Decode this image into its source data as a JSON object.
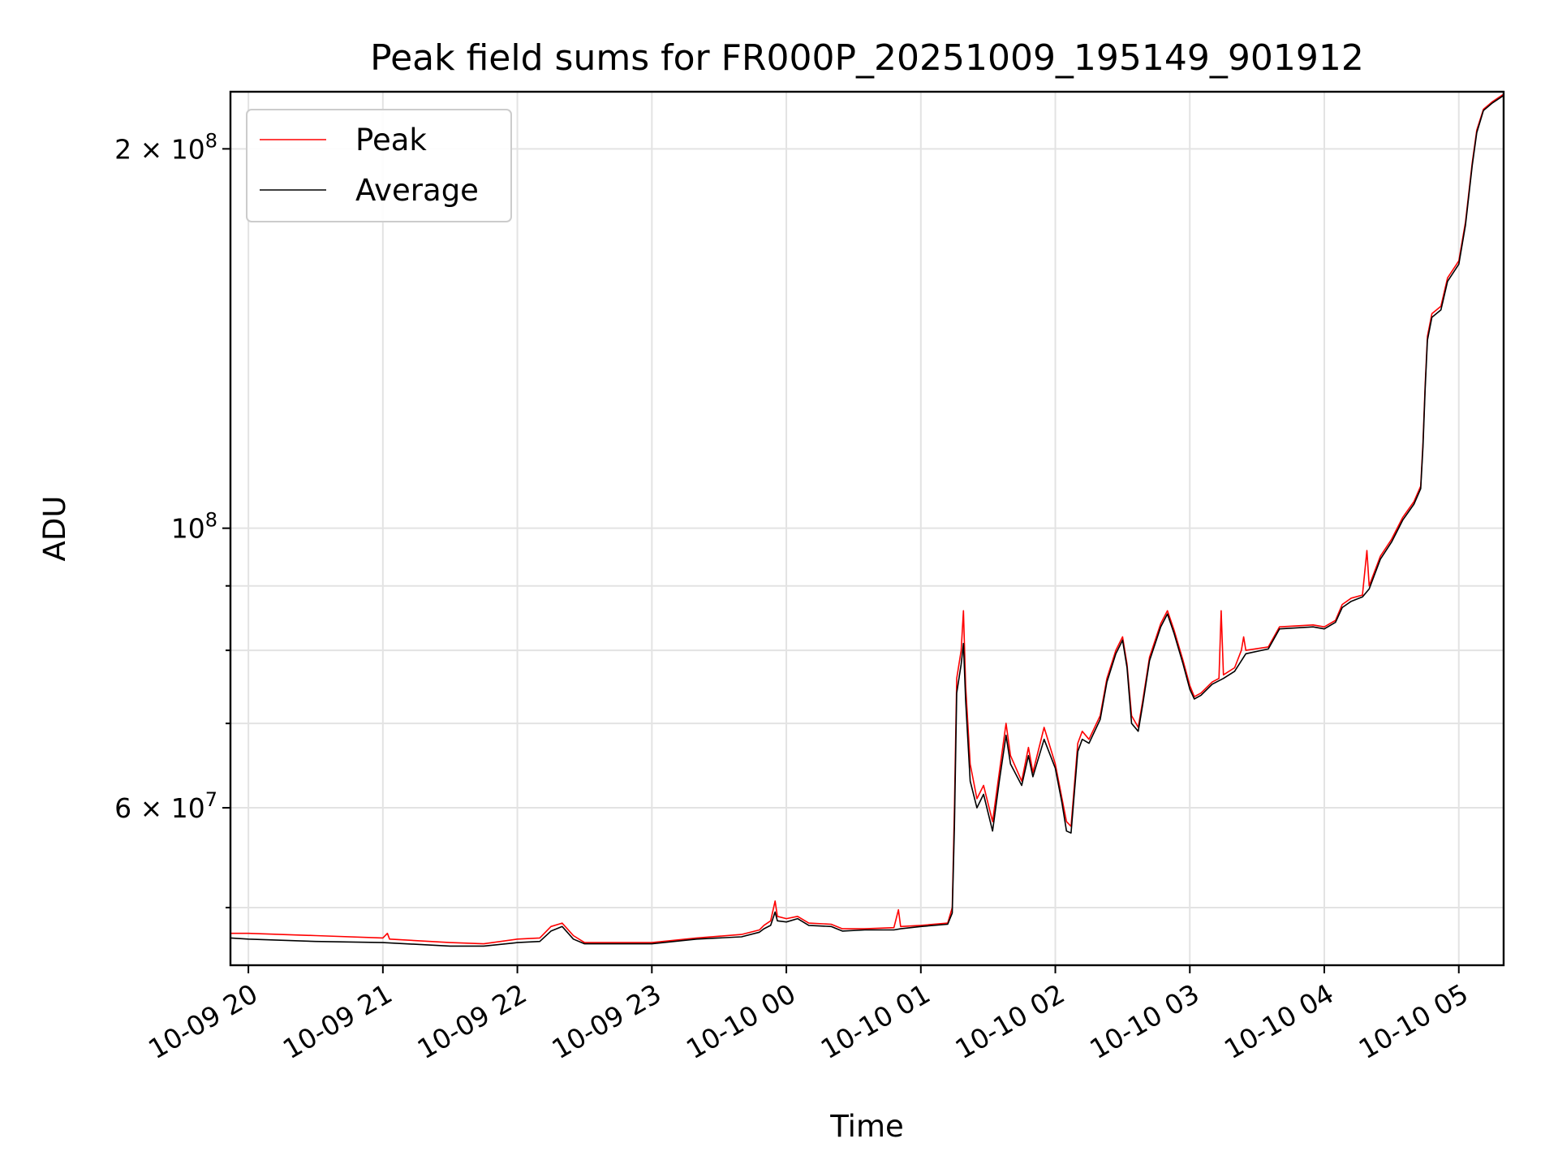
{
  "chart_data": {
    "type": "line",
    "title": "Peak field sums for FR000P_20251009_195149_901912",
    "xlabel": "Time",
    "ylabel": "ADU",
    "y_scale": "log",
    "grid": true,
    "legend_placement": "top-left",
    "x_tick_labels": [
      "10-09 20",
      "10-09 21",
      "10-09 22",
      "10-09 23",
      "10-10 00",
      "10-10 01",
      "10-10 02",
      "10-10 03",
      "10-10 04",
      "10-10 05"
    ],
    "y_tick_labels": [
      {
        "value": 200000000,
        "label_base": "2 × 10",
        "label_exp": "8"
      },
      {
        "value": 100000000,
        "label_base": "10",
        "label_exp": "8"
      },
      {
        "value": 60000000,
        "label_base": "6 × 10",
        "label_exp": "7"
      }
    ],
    "y_minor_ticks": [
      50000000,
      70000000,
      80000000,
      90000000
    ],
    "x_range": [
      "2025-10-09 19:52",
      "2025-10-10 05:20"
    ],
    "y_range": [
      45000000,
      222000000
    ],
    "series": [
      {
        "name": "Peak",
        "color": "#ff0000",
        "points": [
          [
            "2025-10-09 19:52",
            47.7
          ],
          [
            "2025-10-09 20:00",
            47.7
          ],
          [
            "2025-10-09 20:30",
            47.5
          ],
          [
            "2025-10-09 21:00",
            47.3
          ],
          [
            "2025-10-09 21:02",
            47.7
          ],
          [
            "2025-10-09 21:03",
            47.2
          ],
          [
            "2025-10-09 21:30",
            46.9
          ],
          [
            "2025-10-09 21:45",
            46.8
          ],
          [
            "2025-10-09 22:00",
            47.2
          ],
          [
            "2025-10-09 22:10",
            47.3
          ],
          [
            "2025-10-09 22:15",
            48.3
          ],
          [
            "2025-10-09 22:20",
            48.6
          ],
          [
            "2025-10-09 22:25",
            47.5
          ],
          [
            "2025-10-09 22:30",
            46.9
          ],
          [
            "2025-10-09 23:00",
            46.9
          ],
          [
            "2025-10-09 23:20",
            47.3
          ],
          [
            "2025-10-09 23:40",
            47.6
          ],
          [
            "2025-10-09 23:48",
            48.0
          ],
          [
            "2025-10-09 23:50",
            48.4
          ],
          [
            "2025-10-09 23:53",
            48.8
          ],
          [
            "2025-10-09 23:55",
            50.6
          ],
          [
            "2025-10-09 23:56",
            49.2
          ],
          [
            "2025-10-10 00:00",
            49.0
          ],
          [
            "2025-10-10 00:05",
            49.2
          ],
          [
            "2025-10-10 00:10",
            48.6
          ],
          [
            "2025-10-10 00:20",
            48.5
          ],
          [
            "2025-10-10 00:25",
            48.1
          ],
          [
            "2025-10-10 00:35",
            48.1
          ],
          [
            "2025-10-10 00:48",
            48.2
          ],
          [
            "2025-10-10 00:50",
            49.8
          ],
          [
            "2025-10-10 00:51",
            48.3
          ],
          [
            "2025-10-10 01:00",
            48.4
          ],
          [
            "2025-10-10 01:12",
            48.6
          ],
          [
            "2025-10-10 01:14",
            50.0
          ],
          [
            "2025-10-10 01:15",
            60.0
          ],
          [
            "2025-10-10 01:16",
            76.0
          ],
          [
            "2025-10-10 01:18",
            80.0
          ],
          [
            "2025-10-10 01:19",
            86.0
          ],
          [
            "2025-10-10 01:20",
            75.0
          ],
          [
            "2025-10-10 01:22",
            65.0
          ],
          [
            "2025-10-10 01:25",
            61.0
          ],
          [
            "2025-10-10 01:28",
            62.5
          ],
          [
            "2025-10-10 01:32",
            58.5
          ],
          [
            "2025-10-10 01:35",
            64.0
          ],
          [
            "2025-10-10 01:38",
            70.0
          ],
          [
            "2025-10-10 01:40",
            66.0
          ],
          [
            "2025-10-10 01:45",
            63.0
          ],
          [
            "2025-10-10 01:48",
            67.0
          ],
          [
            "2025-10-10 01:50",
            64.0
          ],
          [
            "2025-10-10 01:55",
            69.5
          ],
          [
            "2025-10-10 02:00",
            65.0
          ],
          [
            "2025-10-10 02:03",
            61.0
          ],
          [
            "2025-10-10 02:05",
            58.5
          ],
          [
            "2025-10-10 02:07",
            58.0
          ],
          [
            "2025-10-10 02:10",
            67.5
          ],
          [
            "2025-10-10 02:12",
            69.0
          ],
          [
            "2025-10-10 02:15",
            68.0
          ],
          [
            "2025-10-10 02:20",
            71.0
          ],
          [
            "2025-10-10 02:23",
            76.0
          ],
          [
            "2025-10-10 02:27",
            80.0
          ],
          [
            "2025-10-10 02:30",
            82.0
          ],
          [
            "2025-10-10 02:32",
            78.0
          ],
          [
            "2025-10-10 02:34",
            71.0
          ],
          [
            "2025-10-10 02:37",
            69.5
          ],
          [
            "2025-10-10 02:39",
            73.0
          ],
          [
            "2025-10-10 02:42",
            79.0
          ],
          [
            "2025-10-10 02:47",
            84.0
          ],
          [
            "2025-10-10 02:50",
            86.0
          ],
          [
            "2025-10-10 02:53",
            83.0
          ],
          [
            "2025-10-10 02:57",
            78.5
          ],
          [
            "2025-10-10 03:00",
            75.0
          ],
          [
            "2025-10-10 03:02",
            73.5
          ],
          [
            "2025-10-10 03:05",
            74.0
          ],
          [
            "2025-10-10 03:10",
            75.5
          ],
          [
            "2025-10-10 03:13",
            76.0
          ],
          [
            "2025-10-10 03:14",
            86.0
          ],
          [
            "2025-10-10 03:15",
            76.5
          ],
          [
            "2025-10-10 03:20",
            77.5
          ],
          [
            "2025-10-10 03:23",
            80.0
          ],
          [
            "2025-10-10 03:24",
            82.0
          ],
          [
            "2025-10-10 03:25",
            80.0
          ],
          [
            "2025-10-10 03:35",
            80.5
          ],
          [
            "2025-10-10 03:40",
            83.5
          ],
          [
            "2025-10-10 03:55",
            83.8
          ],
          [
            "2025-10-10 04:00",
            83.5
          ],
          [
            "2025-10-10 04:05",
            84.5
          ],
          [
            "2025-10-10 04:08",
            87.0
          ],
          [
            "2025-10-10 04:12",
            88.0
          ],
          [
            "2025-10-10 04:17",
            88.5
          ],
          [
            "2025-10-10 04:19",
            96.0
          ],
          [
            "2025-10-10 04:20",
            90.0
          ],
          [
            "2025-10-10 04:25",
            95.0
          ],
          [
            "2025-10-10 04:30",
            98.0
          ],
          [
            "2025-10-10 04:35",
            102.0
          ],
          [
            "2025-10-10 04:40",
            105.0
          ],
          [
            "2025-10-10 04:43",
            108.0
          ],
          [
            "2025-10-10 04:44",
            117.0
          ],
          [
            "2025-10-10 04:45",
            130.0
          ],
          [
            "2025-10-10 04:46",
            142.0
          ],
          [
            "2025-10-10 04:48",
            148.0
          ],
          [
            "2025-10-10 04:52",
            150.0
          ],
          [
            "2025-10-10 04:55",
            158.0
          ],
          [
            "2025-10-10 05:00",
            163.0
          ],
          [
            "2025-10-10 05:03",
            175.0
          ],
          [
            "2025-10-10 05:06",
            195.0
          ],
          [
            "2025-10-10 05:08",
            207.0
          ],
          [
            "2025-10-10 05:11",
            215.0
          ],
          [
            "2025-10-10 05:15",
            218.0
          ],
          [
            "2025-10-10 05:20",
            221.0
          ]
        ]
      },
      {
        "name": "Average",
        "color": "#000000",
        "points": [
          [
            "2025-10-09 19:52",
            47.3
          ],
          [
            "2025-10-09 20:00",
            47.2
          ],
          [
            "2025-10-09 20:30",
            47.0
          ],
          [
            "2025-10-09 21:00",
            46.9
          ],
          [
            "2025-10-09 21:30",
            46.6
          ],
          [
            "2025-10-09 21:45",
            46.6
          ],
          [
            "2025-10-09 22:00",
            46.9
          ],
          [
            "2025-10-09 22:10",
            47.0
          ],
          [
            "2025-10-09 22:15",
            47.9
          ],
          [
            "2025-10-09 22:20",
            48.3
          ],
          [
            "2025-10-09 22:25",
            47.2
          ],
          [
            "2025-10-09 22:30",
            46.8
          ],
          [
            "2025-10-09 23:00",
            46.8
          ],
          [
            "2025-10-09 23:20",
            47.2
          ],
          [
            "2025-10-09 23:40",
            47.4
          ],
          [
            "2025-10-09 23:48",
            47.8
          ],
          [
            "2025-10-09 23:50",
            48.1
          ],
          [
            "2025-10-09 23:53",
            48.4
          ],
          [
            "2025-10-09 23:55",
            49.6
          ],
          [
            "2025-10-09 23:56",
            48.8
          ],
          [
            "2025-10-10 00:00",
            48.7
          ],
          [
            "2025-10-10 00:05",
            49.0
          ],
          [
            "2025-10-10 00:10",
            48.4
          ],
          [
            "2025-10-10 00:20",
            48.3
          ],
          [
            "2025-10-10 00:25",
            47.9
          ],
          [
            "2025-10-10 00:35",
            48.0
          ],
          [
            "2025-10-10 00:48",
            48.0
          ],
          [
            "2025-10-10 00:51",
            48.1
          ],
          [
            "2025-10-10 01:00",
            48.3
          ],
          [
            "2025-10-10 01:12",
            48.5
          ],
          [
            "2025-10-10 01:14",
            49.5
          ],
          [
            "2025-10-10 01:15",
            58.0
          ],
          [
            "2025-10-10 01:16",
            74.0
          ],
          [
            "2025-10-10 01:18",
            78.0
          ],
          [
            "2025-10-10 01:19",
            81.0
          ],
          [
            "2025-10-10 01:20",
            73.0
          ],
          [
            "2025-10-10 01:22",
            63.0
          ],
          [
            "2025-10-10 01:25",
            60.0
          ],
          [
            "2025-10-10 01:28",
            61.5
          ],
          [
            "2025-10-10 01:32",
            57.5
          ],
          [
            "2025-10-10 01:35",
            63.0
          ],
          [
            "2025-10-10 01:38",
            68.5
          ],
          [
            "2025-10-10 01:40",
            65.0
          ],
          [
            "2025-10-10 01:45",
            62.5
          ],
          [
            "2025-10-10 01:48",
            66.0
          ],
          [
            "2025-10-10 01:50",
            63.5
          ],
          [
            "2025-10-10 01:55",
            68.0
          ],
          [
            "2025-10-10 02:00",
            64.5
          ],
          [
            "2025-10-10 02:03",
            60.5
          ],
          [
            "2025-10-10 02:05",
            57.5
          ],
          [
            "2025-10-10 02:07",
            57.3
          ],
          [
            "2025-10-10 02:10",
            66.5
          ],
          [
            "2025-10-10 02:12",
            68.0
          ],
          [
            "2025-10-10 02:15",
            67.5
          ],
          [
            "2025-10-10 02:20",
            70.5
          ],
          [
            "2025-10-10 02:23",
            75.5
          ],
          [
            "2025-10-10 02:27",
            79.5
          ],
          [
            "2025-10-10 02:30",
            81.5
          ],
          [
            "2025-10-10 02:32",
            77.5
          ],
          [
            "2025-10-10 02:34",
            70.0
          ],
          [
            "2025-10-10 02:37",
            69.0
          ],
          [
            "2025-10-10 02:39",
            72.5
          ],
          [
            "2025-10-10 02:42",
            78.5
          ],
          [
            "2025-10-10 02:47",
            83.5
          ],
          [
            "2025-10-10 02:50",
            85.5
          ],
          [
            "2025-10-10 02:53",
            82.5
          ],
          [
            "2025-10-10 02:57",
            78.0
          ],
          [
            "2025-10-10 03:00",
            74.5
          ],
          [
            "2025-10-10 03:02",
            73.2
          ],
          [
            "2025-10-10 03:05",
            73.7
          ],
          [
            "2025-10-10 03:10",
            75.2
          ],
          [
            "2025-10-10 03:15",
            76.0
          ],
          [
            "2025-10-10 03:20",
            77.0
          ],
          [
            "2025-10-10 03:25",
            79.5
          ],
          [
            "2025-10-10 03:35",
            80.2
          ],
          [
            "2025-10-10 03:40",
            83.2
          ],
          [
            "2025-10-10 03:55",
            83.5
          ],
          [
            "2025-10-10 04:00",
            83.2
          ],
          [
            "2025-10-10 04:05",
            84.2
          ],
          [
            "2025-10-10 04:08",
            86.5
          ],
          [
            "2025-10-10 04:12",
            87.5
          ],
          [
            "2025-10-10 04:17",
            88.2
          ],
          [
            "2025-10-10 04:20",
            89.5
          ],
          [
            "2025-10-10 04:25",
            94.5
          ],
          [
            "2025-10-10 04:30",
            97.5
          ],
          [
            "2025-10-10 04:35",
            101.5
          ],
          [
            "2025-10-10 04:40",
            104.5
          ],
          [
            "2025-10-10 04:43",
            107.5
          ],
          [
            "2025-10-10 04:44",
            116.0
          ],
          [
            "2025-10-10 04:45",
            129.0
          ],
          [
            "2025-10-10 04:46",
            141.0
          ],
          [
            "2025-10-10 04:48",
            147.0
          ],
          [
            "2025-10-10 04:52",
            149.0
          ],
          [
            "2025-10-10 04:55",
            157.0
          ],
          [
            "2025-10-10 05:00",
            162.0
          ],
          [
            "2025-10-10 05:03",
            174.0
          ],
          [
            "2025-10-10 05:06",
            194.0
          ],
          [
            "2025-10-10 05:08",
            206.0
          ],
          [
            "2025-10-10 05:11",
            214.5
          ],
          [
            "2025-10-10 05:15",
            217.5
          ],
          [
            "2025-10-10 05:20",
            220.5
          ]
        ]
      }
    ],
    "y_values_unit_multiplier": 1000000
  }
}
